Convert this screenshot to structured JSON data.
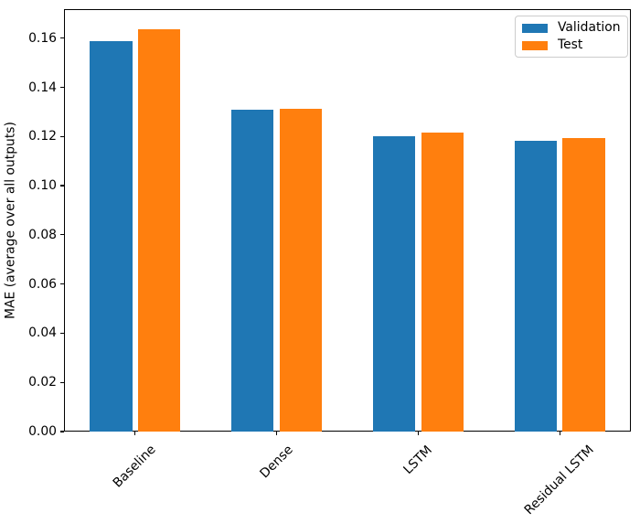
{
  "chart_data": {
    "type": "bar",
    "title": "",
    "categories": [
      "Baseline",
      "Dense",
      "LSTM",
      "Residual LSTM"
    ],
    "series": [
      {
        "name": "Validation",
        "color": "#1f77b4",
        "values": [
          0.1589,
          0.1309,
          0.12,
          0.1183
        ]
      },
      {
        "name": "Test",
        "color": "#ff7f0e",
        "values": [
          0.1635,
          0.1314,
          0.1215,
          0.1193
        ]
      }
    ],
    "xlabel": "",
    "ylabel": "MAE (average over all outputs)",
    "ylim": [
      0,
      0.1718
    ],
    "yticks": [
      "0.00",
      "0.02",
      "0.04",
      "0.06",
      "0.08",
      "0.10",
      "0.12",
      "0.14",
      "0.16"
    ],
    "xtick_rotation_deg": 45,
    "grid": false,
    "legend_position": "upper right",
    "bar_layout": {
      "group_width_frac": 0.3,
      "center_offset_frac": 0.17
    }
  }
}
